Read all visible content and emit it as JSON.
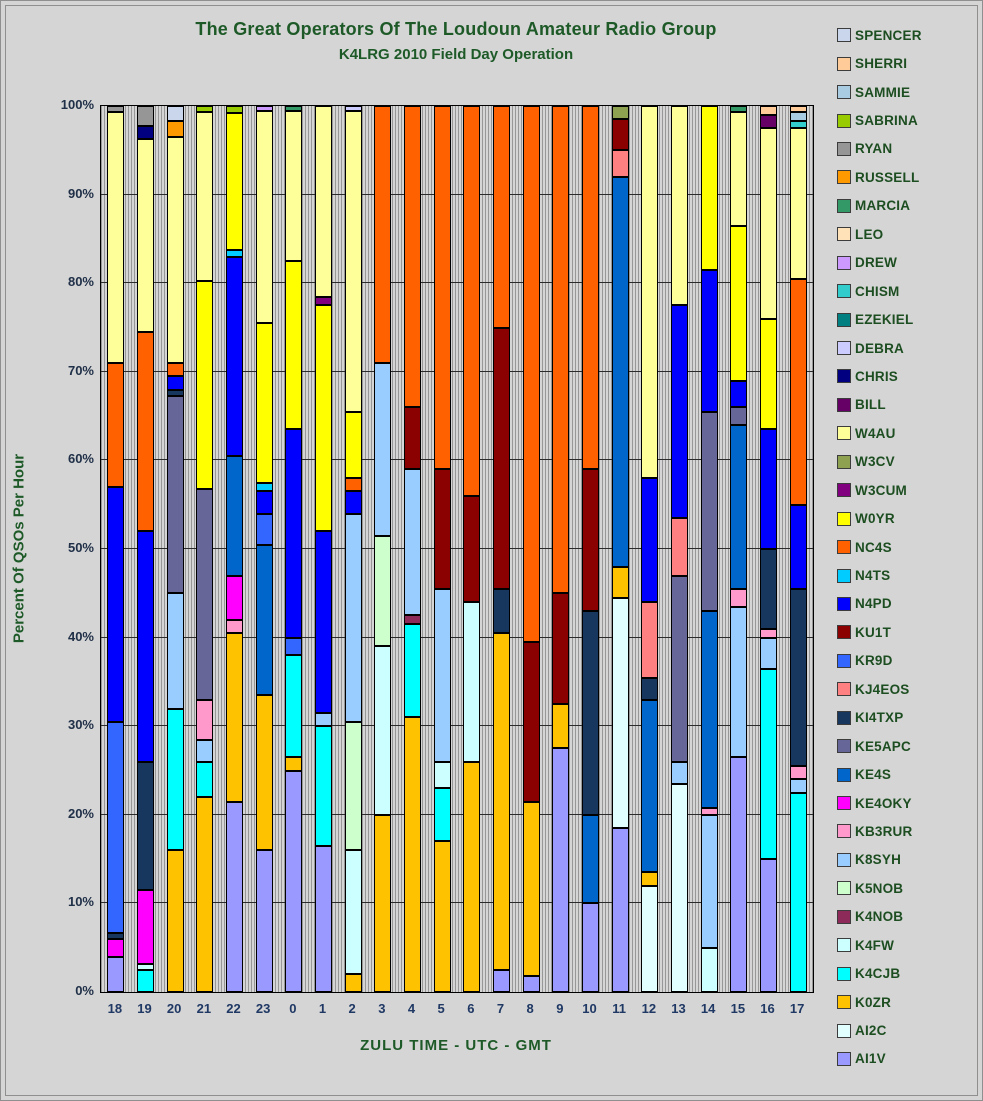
{
  "title": "The Great Operators Of The Loudoun Amateur Radio Group",
  "subtitle": "K4LRG 2010 Field Day Operation",
  "x_axis_title": "ZULU TIME  -  UTC  -  GMT",
  "y_axis_title": "Percent Of QSOs Per Hour",
  "chart_data": {
    "type": "bar",
    "variant": "stacked-100-percent",
    "unit": "percent of QSOs per hour",
    "grid": "horizontal major lines every 10%, fine vertical striping",
    "legend_position": "right",
    "legend_order": "top of legend is top of stack",
    "ylim": [
      0,
      100
    ],
    "y_ticks": [
      "0%",
      "10%",
      "20%",
      "30%",
      "40%",
      "50%",
      "60%",
      "70%",
      "80%",
      "90%",
      "100%"
    ],
    "categories": [
      "18",
      "19",
      "20",
      "21",
      "22",
      "23",
      "0",
      "1",
      "2",
      "3",
      "4",
      "5",
      "6",
      "7",
      "8",
      "9",
      "10",
      "11",
      "12",
      "13",
      "14",
      "15",
      "16",
      "17"
    ],
    "series": [
      {
        "name": "AI1V",
        "color": "#9999FF",
        "values": [
          4,
          0,
          0,
          0,
          21.5,
          16,
          25,
          16.5,
          0,
          0,
          0,
          0,
          0,
          2.5,
          1.8,
          27.5,
          10,
          18.5,
          0,
          0,
          0,
          26.5,
          15,
          0
        ]
      },
      {
        "name": "AI2C",
        "color": "#E2FFFF",
        "values": [
          0,
          0,
          0,
          0,
          0,
          0,
          0,
          0,
          0,
          0,
          0,
          0,
          0,
          0,
          0,
          0,
          0,
          26,
          12,
          23.5,
          0,
          0,
          0,
          0
        ]
      },
      {
        "name": "K0ZR",
        "color": "#FFC200",
        "values": [
          0,
          0,
          16,
          22,
          19,
          17.5,
          1.5,
          0,
          2,
          20,
          31,
          17,
          26,
          38,
          19.7,
          5,
          0,
          3.5,
          1.5,
          0,
          0,
          0,
          0,
          0
        ]
      },
      {
        "name": "K4CJB",
        "color": "#00FFFF",
        "values": [
          0,
          2.5,
          16,
          4,
          0,
          0,
          11.5,
          13.5,
          0,
          0,
          10.5,
          6,
          0,
          0,
          0,
          0,
          0,
          0,
          0,
          0,
          0,
          0,
          21.5,
          22.5
        ]
      },
      {
        "name": "K4FW",
        "color": "#CCFFFF",
        "values": [
          0,
          0.7,
          0,
          0,
          0,
          0,
          0,
          0,
          14,
          19,
          0,
          3,
          18,
          0,
          0,
          0,
          0,
          0,
          0,
          0,
          5,
          0,
          0,
          0
        ]
      },
      {
        "name": "K4NOB",
        "color": "#8E2A59",
        "values": [
          0,
          0,
          0,
          0,
          0,
          0,
          0,
          0,
          0,
          0,
          1,
          0,
          0,
          0,
          0,
          0,
          0,
          0,
          0,
          0,
          0,
          0,
          0,
          0
        ]
      },
      {
        "name": "K5NOB",
        "color": "#CCFFCC",
        "values": [
          0,
          0,
          0,
          0,
          0,
          0,
          0,
          0,
          14.5,
          12.5,
          0,
          0,
          0,
          0,
          0,
          0,
          0,
          0,
          0,
          0,
          0,
          0,
          0,
          0
        ]
      },
      {
        "name": "K8SYH",
        "color": "#99CCFF",
        "values": [
          0,
          0,
          13,
          2.5,
          0,
          0,
          0,
          1.5,
          23.5,
          19.5,
          16.5,
          19.5,
          0,
          0,
          0,
          0,
          0,
          0,
          0,
          2.5,
          15,
          17,
          3.5,
          1.5
        ]
      },
      {
        "name": "KB3RUR",
        "color": "#FF99CC",
        "values": [
          0,
          0,
          0,
          4.5,
          1.5,
          0,
          0,
          0,
          0,
          0,
          0,
          0,
          0,
          0,
          0,
          0,
          0,
          0,
          0,
          0,
          0.8,
          2,
          1,
          1.5
        ]
      },
      {
        "name": "KE4OKY",
        "color": "#FF00FF",
        "values": [
          2,
          8.3,
          0,
          0,
          5,
          0,
          0,
          0,
          0,
          0,
          0,
          0,
          0,
          0,
          0,
          0,
          0,
          0,
          0,
          0,
          0,
          0,
          0,
          0
        ]
      },
      {
        "name": "KE4S",
        "color": "#0066CC",
        "values": [
          0,
          0,
          0,
          0,
          13.5,
          17,
          0,
          0,
          0,
          0,
          0,
          0,
          0,
          0,
          0,
          0,
          10,
          44,
          19.5,
          0,
          22.2,
          18.5,
          0,
          0
        ]
      },
      {
        "name": "KE5APC",
        "color": "#666699",
        "values": [
          0,
          0,
          22.3,
          23.8,
          0,
          0,
          0,
          0,
          0,
          0,
          0,
          0,
          0,
          0,
          0,
          0,
          0,
          0,
          0,
          21,
          22.5,
          2,
          0,
          0
        ]
      },
      {
        "name": "KI4TXP",
        "color": "#17375E",
        "values": [
          0.7,
          14.5,
          0.7,
          0,
          0,
          0,
          0,
          0,
          0,
          0,
          0,
          0,
          0,
          5,
          0,
          0,
          23,
          0,
          2.5,
          0,
          0,
          0,
          9,
          20
        ]
      },
      {
        "name": "KJ4EOS",
        "color": "#FF8080",
        "values": [
          0,
          0,
          0,
          0,
          0,
          0,
          0,
          0,
          0,
          0,
          0,
          0,
          0,
          0,
          0,
          0,
          0,
          3,
          8.5,
          6.5,
          0,
          0,
          0,
          0
        ]
      },
      {
        "name": "KR9D",
        "color": "#3366FF",
        "values": [
          23.8,
          0,
          0,
          0,
          0,
          3.5,
          2,
          0,
          0,
          0,
          0,
          0,
          0,
          0,
          0,
          0,
          0,
          0,
          0,
          0,
          0,
          0,
          0,
          0
        ]
      },
      {
        "name": "KU1T",
        "color": "#8B0000",
        "values": [
          0,
          0,
          0,
          0,
          0,
          0,
          0,
          0,
          0,
          0,
          7,
          13.5,
          12,
          29.5,
          18,
          12.5,
          16,
          3.5,
          0,
          0,
          0,
          0,
          0,
          0
        ]
      },
      {
        "name": "N4PD",
        "color": "#0000FF",
        "values": [
          26.5,
          26,
          1.5,
          0,
          22.5,
          2.5,
          23.5,
          20.5,
          2.5,
          0,
          0,
          0,
          0,
          0,
          0,
          0,
          0,
          0,
          14,
          24,
          16,
          3,
          13.5,
          9.5
        ]
      },
      {
        "name": "N4TS",
        "color": "#00CCFF",
        "values": [
          0,
          0,
          0,
          0,
          0.8,
          1,
          0,
          0,
          0,
          0,
          0,
          0,
          0,
          0,
          0,
          0,
          0,
          0,
          0,
          0,
          0,
          0,
          0,
          0
        ]
      },
      {
        "name": "NC4S",
        "color": "#FF6100",
        "values": [
          14,
          22.5,
          1.5,
          0,
          0,
          0,
          0,
          0,
          1.5,
          29,
          34,
          41,
          44,
          25,
          60.5,
          55,
          41,
          0,
          0,
          0,
          0,
          0,
          0,
          25.5
        ]
      },
      {
        "name": "W0YR",
        "color": "#FFFF00",
        "values": [
          0,
          0,
          0,
          23.5,
          15.4,
          18,
          19,
          25.5,
          7.5,
          0,
          0,
          0,
          0,
          0,
          0,
          0,
          0,
          0,
          0,
          0,
          18.5,
          17.5,
          12.5,
          0
        ]
      },
      {
        "name": "W3CUM",
        "color": "#800080",
        "values": [
          0,
          0,
          0,
          0,
          0,
          0,
          0,
          1,
          0,
          0,
          0,
          0,
          0,
          0,
          0,
          0,
          0,
          0,
          0,
          0,
          0,
          0,
          0,
          0
        ]
      },
      {
        "name": "W3CV",
        "color": "#8DA150",
        "values": [
          0,
          0,
          0,
          0,
          0,
          0,
          0,
          0,
          0,
          0,
          0,
          0,
          0,
          0,
          0,
          0,
          0,
          1.5,
          0,
          0,
          0,
          0,
          0,
          0
        ]
      },
      {
        "name": "W4AU",
        "color": "#FFFF99",
        "values": [
          28.3,
          21.8,
          25.5,
          19,
          0,
          23.9,
          16.9,
          21.5,
          33.9,
          0,
          0,
          0,
          0,
          0,
          0,
          0,
          0,
          0,
          42,
          22.5,
          0,
          12.8,
          21.5,
          17
        ]
      },
      {
        "name": "BILL",
        "color": "#660066",
        "values": [
          0,
          0,
          0,
          0,
          0,
          0,
          0,
          0,
          0,
          0,
          0,
          0,
          0,
          0,
          0,
          0,
          0,
          0,
          0,
          0,
          0,
          0,
          1.5,
          0
        ]
      },
      {
        "name": "CHRIS",
        "color": "#000080",
        "values": [
          0,
          1.5,
          0,
          0,
          0,
          0,
          0,
          0,
          0,
          0,
          0,
          0,
          0,
          0,
          0,
          0,
          0,
          0,
          0,
          0,
          0,
          0,
          0,
          0
        ]
      },
      {
        "name": "DEBRA",
        "color": "#CCCCFF",
        "values": [
          0,
          0,
          0,
          0,
          0,
          0,
          0,
          0,
          0.6,
          0,
          0,
          0,
          0,
          0,
          0,
          0,
          0,
          0,
          0,
          0,
          0,
          0,
          0,
          0
        ]
      },
      {
        "name": "EZEKIEL",
        "color": "#008080",
        "values": [
          0,
          0,
          0,
          0,
          0,
          0,
          0,
          0,
          0,
          0,
          0,
          0,
          0,
          0,
          0,
          0,
          0,
          0,
          0,
          0,
          0,
          0,
          0,
          0
        ]
      },
      {
        "name": "CHISM",
        "color": "#33CCCC",
        "values": [
          0,
          0,
          0,
          0,
          0,
          0,
          0,
          0,
          0,
          0,
          0,
          0,
          0,
          0,
          0,
          0,
          0,
          0,
          0,
          0,
          0,
          0,
          0,
          0.8
        ]
      },
      {
        "name": "DREW",
        "color": "#CC99FF",
        "values": [
          0,
          0,
          0,
          0,
          0,
          0.6,
          0,
          0,
          0,
          0,
          0,
          0,
          0,
          0,
          0,
          0,
          0,
          0,
          0,
          0,
          0,
          0,
          0,
          0
        ]
      },
      {
        "name": "LEO",
        "color": "#FFE2B8",
        "values": [
          0,
          0,
          0,
          0,
          0,
          0,
          0,
          0,
          0,
          0,
          0,
          0,
          0,
          0,
          0,
          0,
          0,
          0,
          0,
          0,
          0,
          0,
          0,
          0
        ]
      },
      {
        "name": "MARCIA",
        "color": "#339966",
        "values": [
          0,
          0,
          0,
          0,
          0,
          0,
          0.6,
          0,
          0,
          0,
          0,
          0,
          0,
          0,
          0,
          0,
          0,
          0,
          0,
          0,
          0,
          0.7,
          0,
          0
        ]
      },
      {
        "name": "RUSSELL",
        "color": "#FF9900",
        "values": [
          0,
          0,
          1.8,
          0,
          0,
          0,
          0,
          0,
          0,
          0,
          0,
          0,
          0,
          0,
          0,
          0,
          0,
          0,
          0,
          0,
          0,
          0,
          0,
          0
        ]
      },
      {
        "name": "RYAN",
        "color": "#969696",
        "values": [
          0.7,
          2.2,
          0,
          0,
          0,
          0,
          0,
          0,
          0,
          0,
          0,
          0,
          0,
          0,
          0,
          0,
          0,
          0,
          0,
          0,
          0,
          0,
          0,
          0
        ]
      },
      {
        "name": "SABRINA",
        "color": "#99CC00",
        "values": [
          0,
          0,
          0,
          0.7,
          0.8,
          0,
          0,
          0,
          0,
          0,
          0,
          0,
          0,
          0,
          0,
          0,
          0,
          0,
          0,
          0,
          0,
          0,
          0,
          0
        ]
      },
      {
        "name": "SAMMIE",
        "color": "#A9CCE3",
        "values": [
          0,
          0,
          0,
          0,
          0,
          0,
          0,
          0,
          0,
          0,
          0,
          0,
          0,
          0,
          0,
          0,
          0,
          0,
          0,
          0,
          0,
          0,
          0,
          1
        ]
      },
      {
        "name": "SHERRI",
        "color": "#FFCC99",
        "values": [
          0,
          0,
          0,
          0,
          0,
          0,
          0,
          0,
          0,
          0,
          0,
          0,
          0,
          0,
          0,
          0,
          0,
          0,
          0,
          0,
          0,
          0,
          1,
          0.7
        ]
      },
      {
        "name": "SPENCER",
        "color": "#C9D6EB",
        "values": [
          0,
          0,
          1.7,
          0,
          0,
          0,
          0,
          0,
          0,
          0,
          0,
          0,
          0,
          0,
          0,
          0,
          0,
          0,
          0,
          0,
          0,
          0,
          0,
          0
        ]
      }
    ]
  }
}
